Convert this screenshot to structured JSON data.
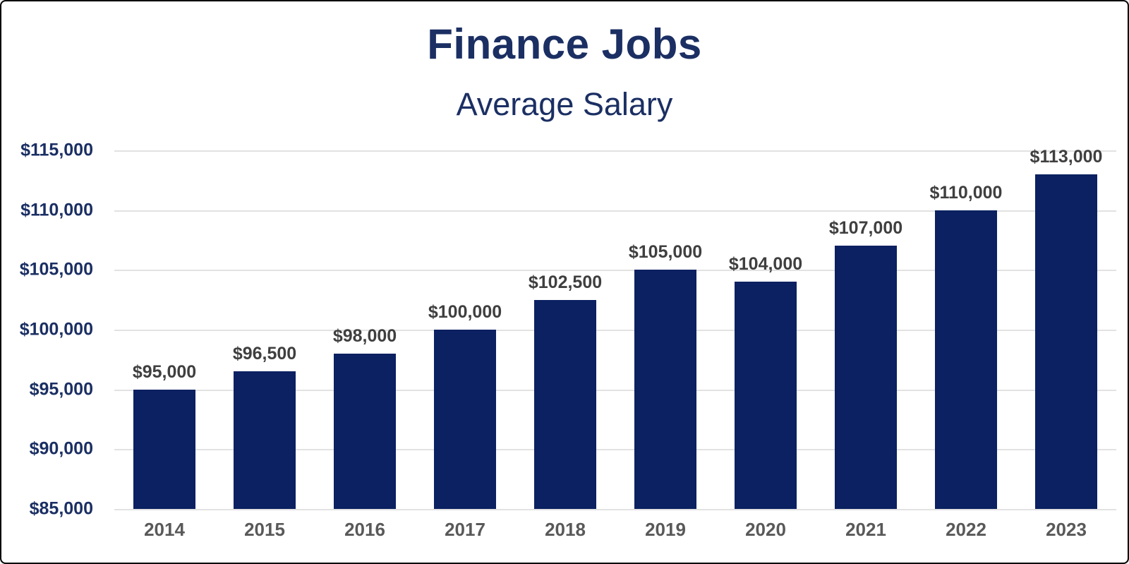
{
  "frame": {
    "background": "#ffffff",
    "border_color": "#000000"
  },
  "chart_data": {
    "type": "bar",
    "title": "Finance Jobs",
    "subtitle": "Average Salary",
    "categories": [
      "2014",
      "2015",
      "2016",
      "2017",
      "2018",
      "2019",
      "2020",
      "2021",
      "2022",
      "2023"
    ],
    "values": [
      95000,
      96500,
      98000,
      100000,
      102500,
      105000,
      104000,
      107000,
      110000,
      113000
    ],
    "value_labels": [
      "$95,000",
      "$96,500",
      "$98,000",
      "$100,000",
      "$102,500",
      "$105,000",
      "$104,000",
      "$107,000",
      "$110,000",
      "$113,000"
    ],
    "xlabel": "",
    "ylabel": "",
    "ylim": [
      85000,
      115000
    ],
    "yticks": [
      {
        "value": 85000,
        "label": "$85,000"
      },
      {
        "value": 90000,
        "label": "$90,000"
      },
      {
        "value": 95000,
        "label": "$95,000"
      },
      {
        "value": 100000,
        "label": "$100,000"
      },
      {
        "value": 105000,
        "label": "$105,000"
      },
      {
        "value": 110000,
        "label": "$110,000"
      },
      {
        "value": 115000,
        "label": "$115,000"
      }
    ],
    "grid": "horizontal",
    "legend_position": "none",
    "colors": {
      "bar": "#0b2161",
      "title_text": "#1b2f63",
      "axis_tick_text": "#1b2f63",
      "data_label_text": "#3f3f3f",
      "category_label_text": "#595959",
      "gridline": "#e2e2e2",
      "background": "#ffffff",
      "border": "#000000"
    }
  }
}
